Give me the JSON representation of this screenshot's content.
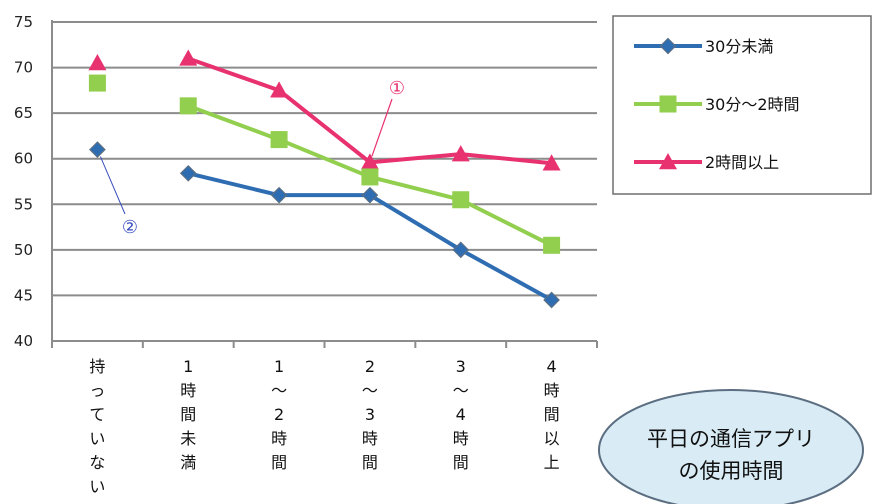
{
  "chart_data": {
    "type": "line",
    "title": "",
    "xlabel": "",
    "ylabel": "",
    "ylim": [
      40,
      75
    ],
    "yticks": [
      40,
      45,
      50,
      55,
      60,
      65,
      70,
      75
    ],
    "grid": true,
    "legend_position": "top-right",
    "categories": [
      [
        "持",
        "っ",
        "て",
        "い",
        "な",
        "い"
      ],
      [
        "1",
        "時",
        "間",
        "未",
        "満"
      ],
      [
        "1",
        "〜",
        "2",
        "時",
        "間"
      ],
      [
        "2",
        "〜",
        "3",
        "時",
        "間"
      ],
      [
        "3",
        "〜",
        "4",
        "時",
        "間"
      ],
      [
        "4",
        "時",
        "間",
        "以",
        "上"
      ]
    ],
    "series": [
      {
        "name": "30分未満",
        "marker": "diamond",
        "color": "#2f6db3",
        "values": [
          61.0,
          58.4,
          56.0,
          56.0,
          50.0,
          44.5
        ]
      },
      {
        "name": "30分〜2時間",
        "marker": "square",
        "color": "#92cf4f",
        "values": [
          68.3,
          65.8,
          62.1,
          58.0,
          55.5,
          50.5
        ]
      },
      {
        "name": "2時間以上",
        "marker": "triangle",
        "color": "#e8316f",
        "values": [
          70.5,
          71.0,
          67.5,
          59.6,
          60.5,
          59.5
        ]
      }
    ],
    "annotations": [
      {
        "text": "①",
        "color": "#e8316f",
        "points_to": "2時間以上 at 2〜3時間"
      },
      {
        "text": "②",
        "color": "#3a4fbf",
        "points_to": "30分未満 at 持っていない"
      }
    ],
    "bubble_text": [
      "平日の通信アプリ",
      "の使用時間"
    ]
  }
}
